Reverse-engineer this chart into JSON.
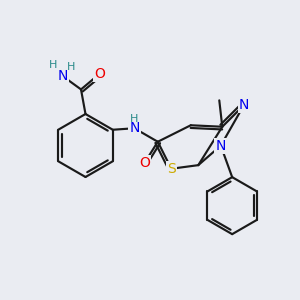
{
  "background_color": "#eaecf2",
  "bond_color": "#1a1a1a",
  "atom_colors": {
    "N": "#0000ee",
    "O": "#ee0000",
    "S": "#ccaa00",
    "H": "#2a8a8a",
    "C": "#1a1a1a"
  },
  "font_size": 10,
  "figsize": [
    3.0,
    3.0
  ],
  "dpi": 100
}
